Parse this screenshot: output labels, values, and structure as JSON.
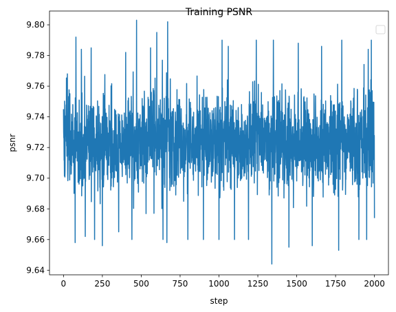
{
  "chart_data": {
    "type": "line",
    "title": "Training PSNR",
    "xlabel": "step",
    "ylabel": "psnr",
    "xlim": [
      -90,
      2090
    ],
    "ylim": [
      9.637,
      9.809
    ],
    "xticks": [
      0,
      250,
      500,
      750,
      1000,
      1250,
      1500,
      1750,
      2000
    ],
    "yticks": [
      9.64,
      9.66,
      9.68,
      9.7,
      9.72,
      9.74,
      9.76,
      9.78,
      9.8
    ],
    "ytick_labels": [
      "9.64",
      "9.66",
      "9.68",
      "9.70",
      "9.72",
      "9.74",
      "9.76",
      "9.78",
      "9.80"
    ],
    "grid": false,
    "legend": {
      "location": "top-right",
      "entries": []
    },
    "series": [
      {
        "color": "#1f77b4",
        "x_start": 0,
        "x_step": 1,
        "count": 2001,
        "summary": {
          "mean": 9.724,
          "std": 0.018,
          "min": 9.644,
          "max": 9.803
        },
        "points": [
          [
            0,
            9.745
          ],
          [
            25,
            9.768
          ],
          [
            50,
            9.703
          ],
          [
            60,
            9.748
          ],
          [
            75,
            9.658
          ],
          [
            80,
            9.792
          ],
          [
            115,
            9.784
          ],
          [
            140,
            9.662
          ],
          [
            178,
            9.785
          ],
          [
            200,
            9.66
          ],
          [
            250,
            9.656
          ],
          [
            355,
            9.665
          ],
          [
            400,
            9.782
          ],
          [
            440,
            9.66
          ],
          [
            470,
            9.803
          ],
          [
            560,
            9.785
          ],
          [
            600,
            9.795
          ],
          [
            640,
            9.66
          ],
          [
            665,
            9.658
          ],
          [
            670,
            9.802
          ],
          [
            800,
            9.66
          ],
          [
            900,
            9.66
          ],
          [
            1000,
            9.66
          ],
          [
            1020,
            9.79
          ],
          [
            1060,
            9.786
          ],
          [
            1100,
            9.66
          ],
          [
            1190,
            9.66
          ],
          [
            1240,
            9.79
          ],
          [
            1340,
            9.644
          ],
          [
            1350,
            9.79
          ],
          [
            1450,
            9.655
          ],
          [
            1510,
            9.788
          ],
          [
            1600,
            9.656
          ],
          [
            1660,
            9.786
          ],
          [
            1770,
            9.653
          ],
          [
            1790,
            9.79
          ],
          [
            1900,
            9.66
          ],
          [
            1950,
            9.66
          ],
          [
            1960,
            9.784
          ],
          [
            1980,
            9.79
          ],
          [
            2000,
            9.674
          ]
        ]
      }
    ]
  }
}
